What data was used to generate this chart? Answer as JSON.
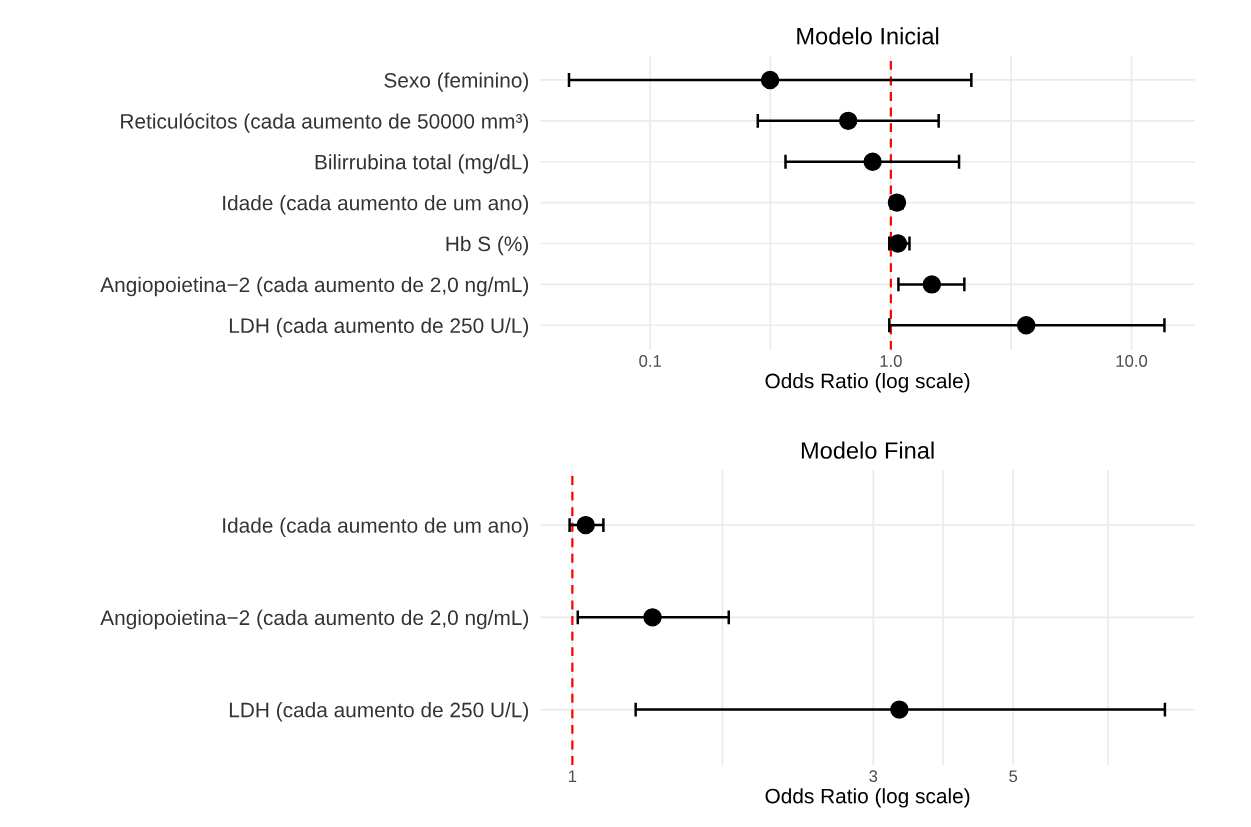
{
  "chart_data": [
    {
      "type": "scatter",
      "orientation": "horizontal",
      "title": "Modelo Inicial",
      "xlabel": "Odds Ratio (log scale)",
      "log": "x",
      "grid": true,
      "marker": "circle",
      "categories": [
        "Sexo (feminino)",
        "Reticulócitos (cada aumento de 50000 mm³)",
        "Bilirrubina total (mg/dL)",
        "Idade (cada aumento de um ano)",
        "Hb S (%)",
        "Angiopoietina−2 (cada aumento de 2,0 ng/mL)",
        "LDH (cada aumento de 250 U/L)"
      ],
      "series": [
        {
          "color": "#000000",
          "values": [
            0.315,
            0.665,
            0.84,
            1.06,
            1.07,
            1.48,
            3.65
          ],
          "errors": [
            [
              0.046,
              2.16
            ],
            [
              0.28,
              1.58
            ],
            [
              0.365,
              1.92
            ],
            [
              1.0,
              1.12
            ],
            [
              0.985,
              1.195
            ],
            [
              1.075,
              2.02
            ],
            [
              0.985,
              13.7
            ]
          ]
        }
      ],
      "xlim": [
        0.035,
        18.3
      ],
      "xticks": [
        {
          "value": 0.1,
          "label": "0.1"
        },
        {
          "value": 0.316,
          "label": null
        },
        {
          "value": 1,
          "label": "1.0"
        },
        {
          "value": 3.16,
          "label": null
        },
        {
          "value": 10,
          "label": "10.0"
        }
      ],
      "ref_lines": [
        {
          "axis": "x",
          "value": 1,
          "color": "#ff0000",
          "line_style": "dashed"
        }
      ]
    },
    {
      "type": "scatter",
      "orientation": "horizontal",
      "title": "Modelo Final",
      "xlabel": "Odds Ratio (log scale)",
      "log": "x",
      "grid": true,
      "marker": "circle",
      "categories": [
        "Idade (cada aumento de um ano)",
        "Angiopoietina−2 (cada aumento de 2,0 ng/mL)",
        "LDH (cada aumento de 250 U/L)"
      ],
      "series": [
        {
          "color": "#000000",
          "values": [
            1.05,
            1.34,
            3.3
          ],
          "errors": [
            [
              0.99,
              1.12
            ],
            [
              1.02,
              1.77
            ],
            [
              1.26,
              8.7
            ]
          ]
        }
      ],
      "xlim": [
        0.89,
        9.7
      ],
      "xticks": [
        1,
        {
          "value": 1.73,
          "label": null
        },
        3,
        {
          "value": 3.87,
          "label": null
        },
        5,
        {
          "value": 7.07,
          "label": null
        }
      ],
      "ref_lines": [
        {
          "axis": "x",
          "value": 1,
          "color": "#ff0000",
          "line_style": "dashed"
        }
      ]
    }
  ]
}
